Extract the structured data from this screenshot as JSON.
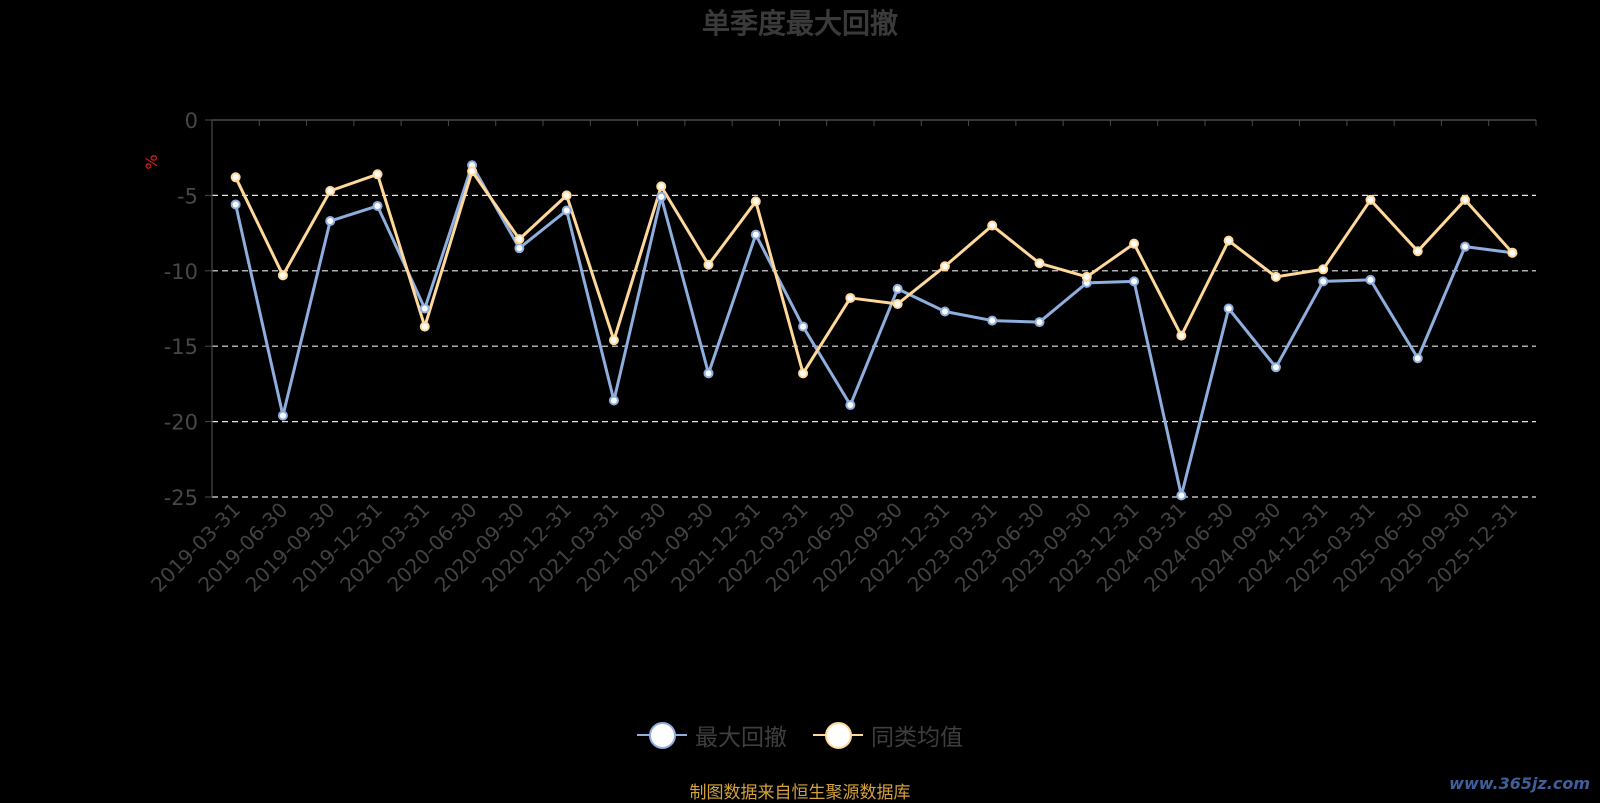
{
  "title": "单季度最大回撤",
  "source_note": "制图数据来自恒生聚源数据库",
  "watermark": "www.365jz.com",
  "colors": {
    "series1": "#8eaede",
    "series2": "#ffd89a",
    "axis_label_y": "#e02020"
  },
  "chart_data": {
    "type": "line",
    "title": "单季度最大回撤",
    "ylabel": "%",
    "ylim": [
      -25,
      0
    ],
    "yticks": [
      0,
      -5,
      -10,
      -15,
      -20,
      -25
    ],
    "grid": true,
    "legend_position": "bottom-center",
    "x": [
      "2019-03-31",
      "2019-06-30",
      "2019-09-30",
      "2019-12-31",
      "2020-03-31",
      "2020-06-30",
      "2020-09-30",
      "2020-12-31",
      "2021-03-31",
      "2021-06-30",
      "2021-09-30",
      "2021-12-31",
      "2022-03-31",
      "2022-06-30",
      "2022-09-30",
      "2022-12-31",
      "2023-03-31",
      "2023-06-30",
      "2023-09-30",
      "2023-12-31",
      "2024-03-31",
      "2024-06-30",
      "2024-09-30",
      "2024-12-31",
      "2025-03-31",
      "2025-06-30",
      "2025-09-30",
      "2025-12-31"
    ],
    "series": [
      {
        "name": "最大回撤",
        "values": [
          -5.6,
          -19.6,
          -6.7,
          -5.7,
          -12.5,
          -3.0,
          -8.5,
          -6.0,
          -18.6,
          -5.1,
          -16.8,
          -7.6,
          -13.7,
          -18.9,
          -11.2,
          -12.7,
          -13.3,
          -13.4,
          -10.8,
          -10.7,
          -24.9,
          -12.5,
          -16.4,
          -10.7,
          -10.6,
          -15.8,
          -8.4,
          -8.8
        ]
      },
      {
        "name": "同类均值",
        "values": [
          -3.8,
          -10.3,
          -4.7,
          -3.6,
          -13.7,
          -3.4,
          -7.9,
          -5.0,
          -14.6,
          -4.4,
          -9.6,
          -5.4,
          -16.8,
          -11.8,
          -12.2,
          -9.7,
          -7.0,
          -9.5,
          -10.4,
          -8.2,
          -14.3,
          -8.0,
          -10.4,
          -9.9,
          -5.3,
          -8.7,
          -5.3,
          -8.8
        ]
      }
    ]
  }
}
